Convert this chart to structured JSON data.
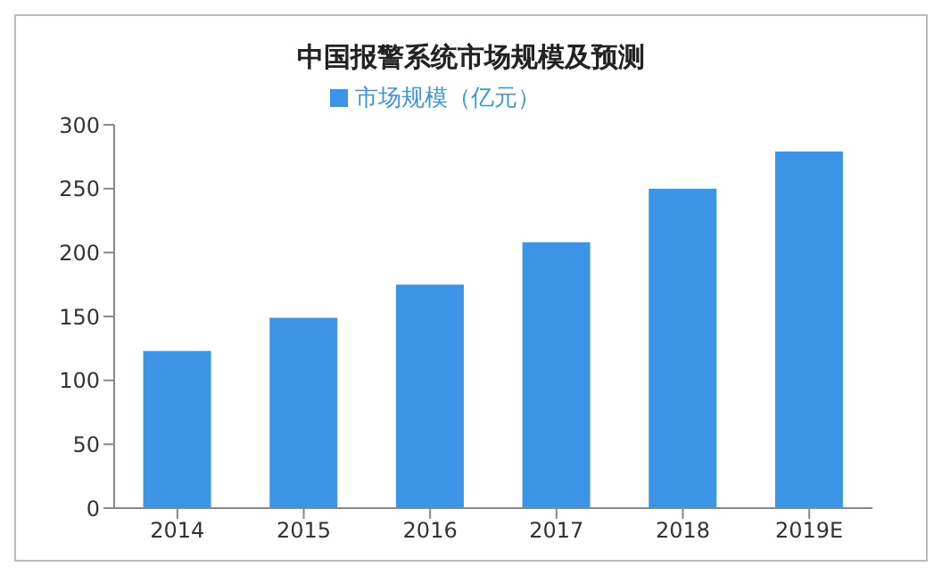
{
  "chart_data": {
    "type": "bar",
    "title": "中国报警系统市场规模及预测",
    "categories": [
      "2014",
      "2015",
      "2016",
      "2017",
      "2018",
      "2019E"
    ],
    "series": [
      {
        "name": "市场规模（亿元）",
        "color": "#3b94e6",
        "values": [
          123,
          149,
          175,
          208,
          250,
          279
        ]
      }
    ],
    "ylim": [
      0,
      300
    ],
    "yticks": [
      0,
      50,
      100,
      150,
      200,
      250,
      300
    ],
    "grid": false,
    "legend": "top"
  }
}
